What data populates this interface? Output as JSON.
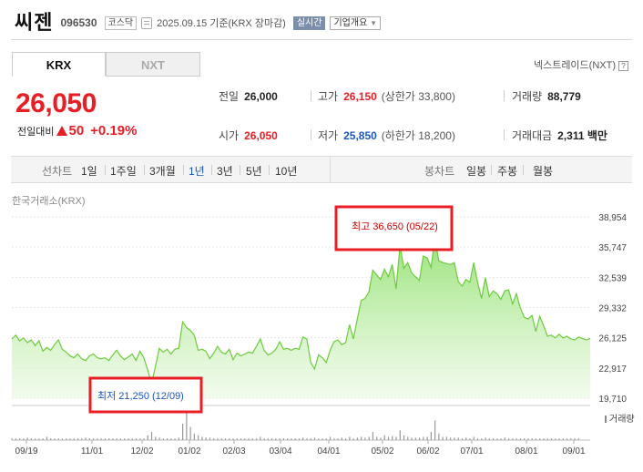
{
  "header": {
    "stock_name": "씨젠",
    "stock_code": "096530",
    "market_badge": "코스닥",
    "date_text": "2025.09.15 기준(KRX 장마감)",
    "live_badge": "실시간",
    "company_overview": "기업개요"
  },
  "market_tabs": [
    {
      "label": "KRX",
      "active": true
    },
    {
      "label": "NXT",
      "active": false
    }
  ],
  "nxt_link": "넥스트레이드(NXT)",
  "quote": {
    "price": "26,050",
    "change_label": "전일대비",
    "change_amount": "50",
    "change_pct": "+0.19%"
  },
  "stats": {
    "prev_close_label": "전일",
    "prev_close": "26,000",
    "high_label": "고가",
    "high": "26,150",
    "upper_limit": "(상한가 33,800)",
    "volume_label": "거래량",
    "volume": "88,779",
    "open_label": "시가",
    "open": "26,050",
    "low_label": "저가",
    "low": "25,850",
    "lower_limit": "(하한가 18,200)",
    "amount_label": "거래대금",
    "amount": "2,311 백만"
  },
  "period_bar": {
    "line_chart_label": "선차트",
    "line_periods": [
      "1일",
      "1주일",
      "3개월",
      "1년",
      "3년",
      "5년",
      "10년"
    ],
    "active_period": "1년",
    "candle_chart_label": "봉차트",
    "candle_periods": [
      "일봉",
      "주봉",
      "월봉"
    ]
  },
  "source_label": "한국거래소(KRX)",
  "colors": {
    "up": "#e81e25",
    "down": "#1a56c2",
    "area": "#8ee06a"
  },
  "chart_data": {
    "type": "area",
    "y_ticks": [
      "38,954",
      "35,747",
      "32,539",
      "29,332",
      "26,125",
      "22,917",
      "19,710"
    ],
    "x_ticks": [
      "09/19",
      "11/01",
      "12/02",
      "01/02",
      "02/03",
      "03/04",
      "04/01",
      "05/02",
      "06/02",
      "07/01",
      "08/01",
      "09/01"
    ],
    "ylim": [
      19710,
      38954
    ],
    "volume_label": "거래량",
    "high_annotation": "최고 36,650 (05/22)",
    "low_annotation": "최저 21,250 (12/09)",
    "series": [
      {
        "values": [
          26000,
          26400,
          25800,
          26100,
          25600,
          25900,
          25300,
          25800,
          24700,
          25100,
          24800,
          25400,
          25900,
          24900,
          24600,
          24200,
          24000,
          24400,
          23900,
          23700,
          24200,
          24400,
          24000,
          23900,
          24000,
          23700,
          24300,
          24800,
          24200,
          23800,
          24100,
          24400,
          23700,
          24700,
          24000,
          22700,
          21250,
          23100,
          25000,
          24600,
          24900,
          24400,
          24900,
          25000,
          27800,
          27200,
          26900,
          26400,
          24800,
          24900,
          24700,
          23900,
          24500,
          25200,
          24600,
          24400,
          24900,
          23800,
          24500,
          24200,
          24400,
          24600,
          24500,
          25200,
          26000,
          24800,
          24300,
          24500,
          24900,
          25700,
          24900,
          25000,
          24800,
          25000,
          24900,
          26200,
          26000,
          23500,
          22800,
          24300,
          24000,
          23500,
          24800,
          25700,
          25900,
          25400,
          25600,
          27500,
          26000,
          28100,
          30100,
          30300,
          31000,
          33300,
          32800,
          32300,
          33400,
          32600,
          33900,
          31300,
          35900,
          33500,
          34100,
          33000,
          32600,
          32200,
          34800,
          34600,
          33600,
          36650,
          34300,
          34100,
          34000,
          33900,
          34100,
          32100,
          31600,
          32300,
          32000,
          34100,
          32000,
          30300,
          32500,
          30500,
          31100,
          30800,
          30200,
          31100,
          31200,
          29700,
          30800,
          29300,
          28300,
          28100,
          28500,
          26800,
          28400,
          27400,
          26300,
          26400,
          26100,
          26500,
          26100,
          26300,
          26000,
          25900,
          26200,
          26050,
          25900,
          26050
        ]
      }
    ],
    "volume_values": [
      1,
      1,
      1,
      1,
      1.5,
      1,
      1,
      1,
      1,
      2,
      1,
      1,
      1,
      1,
      1,
      1,
      1,
      1,
      1,
      1.5,
      1,
      1,
      1,
      1,
      1,
      1,
      1,
      1,
      1,
      1,
      1,
      1,
      1,
      1,
      1,
      3,
      5,
      2,
      1.5,
      1,
      1,
      1,
      1,
      1.5,
      10,
      20,
      8,
      4,
      3,
      2,
      1.5,
      1.5,
      1,
      1,
      1,
      1,
      1,
      1,
      1,
      1,
      1,
      1,
      1,
      1,
      2,
      1,
      1,
      1,
      1,
      1,
      1,
      1,
      1,
      1,
      1,
      1.5,
      1,
      1,
      1.5,
      1,
      1,
      1,
      2,
      1,
      1,
      1.5,
      1,
      2,
      1,
      1.5,
      2,
      1.5,
      2,
      5,
      2,
      1.5,
      3,
      2,
      2.5,
      2,
      6,
      3,
      2,
      1.5,
      1.5,
      1.5,
      2,
      2,
      5,
      12,
      4,
      2,
      2,
      1.5,
      1.5,
      1.5,
      1,
      1.5,
      1,
      2,
      1,
      1,
      1.5,
      1,
      1,
      1,
      1,
      1.5,
      1,
      1,
      1,
      1,
      1,
      1,
      1,
      1,
      1,
      1,
      1,
      1,
      1,
      1,
      1,
      1,
      1,
      1,
      1
    ]
  }
}
